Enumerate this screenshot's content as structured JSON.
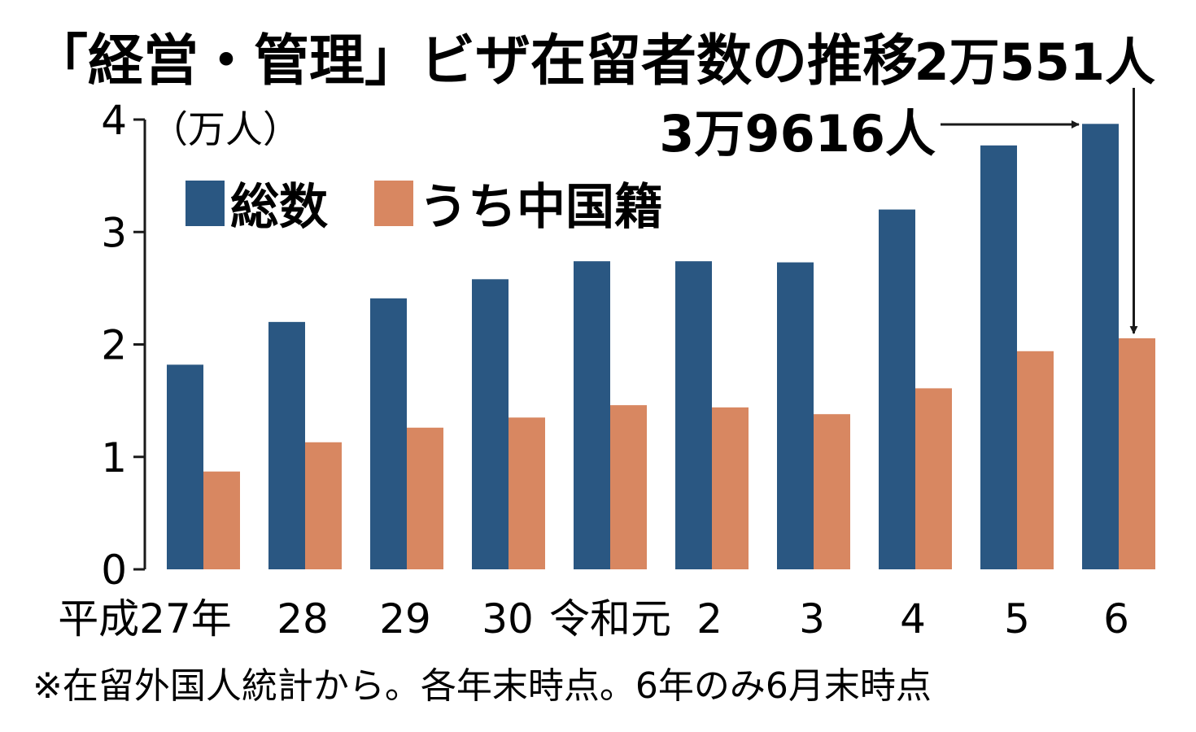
{
  "chart_data": {
    "type": "bar",
    "title": "「経営・管理」ビザ在留者数の推移",
    "unit_label": "（万人）",
    "categories": [
      "平成27年",
      "28",
      "29",
      "30",
      "令和元",
      "2",
      "3",
      "4",
      "5",
      "6"
    ],
    "series": [
      {
        "name": "総数",
        "color": "#2a5782",
        "values": [
          1.82,
          2.2,
          2.41,
          2.58,
          2.74,
          2.74,
          2.73,
          3.2,
          3.77,
          3.9616
        ]
      },
      {
        "name": "うち中国籍",
        "color": "#d88761",
        "values": [
          0.87,
          1.13,
          1.26,
          1.35,
          1.46,
          1.44,
          1.38,
          1.61,
          1.94,
          2.0551
        ]
      }
    ],
    "ylim": [
      0,
      4
    ],
    "yticks": [
      0,
      1,
      2,
      3,
      4
    ],
    "annotations": [
      {
        "text": "3万9616人",
        "series": 0,
        "index": 9
      },
      {
        "text": "2万551人",
        "series": 1,
        "index": 9
      }
    ],
    "note": "※在留外国人統計から。各年末時点。6年のみ6月末時点",
    "legend_position": "top-left"
  }
}
